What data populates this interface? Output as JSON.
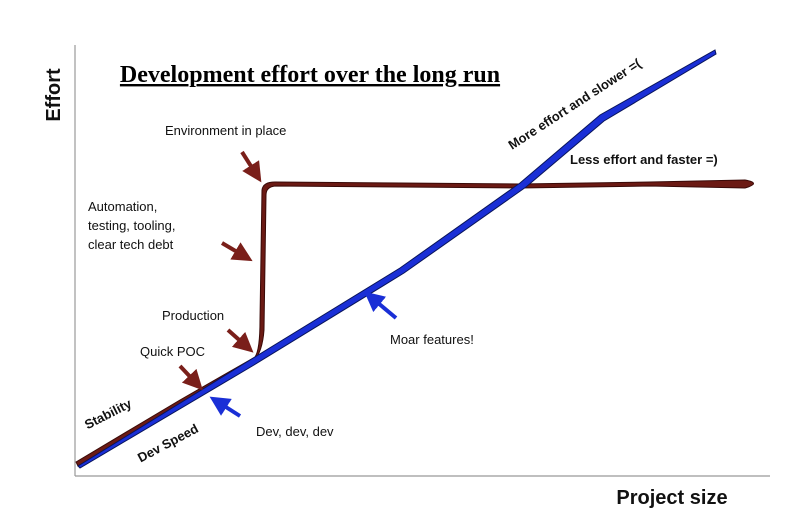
{
  "title": "Development effort over the long run",
  "axes": {
    "y_label": "Effort",
    "x_label": "Project size"
  },
  "curves": {
    "brown_label": "Stability",
    "blue_label": "Dev Speed"
  },
  "annotations": {
    "environment": "Environment in place",
    "automation": [
      "Automation,",
      "testing, tooling,",
      "clear tech debt"
    ],
    "production": "Production",
    "quick_poc": "Quick POC",
    "dev": "Dev, dev, dev",
    "moar": "Moar features!",
    "more_effort": "More effort and slower =(",
    "less_effort": "Less effort and faster =)"
  }
}
